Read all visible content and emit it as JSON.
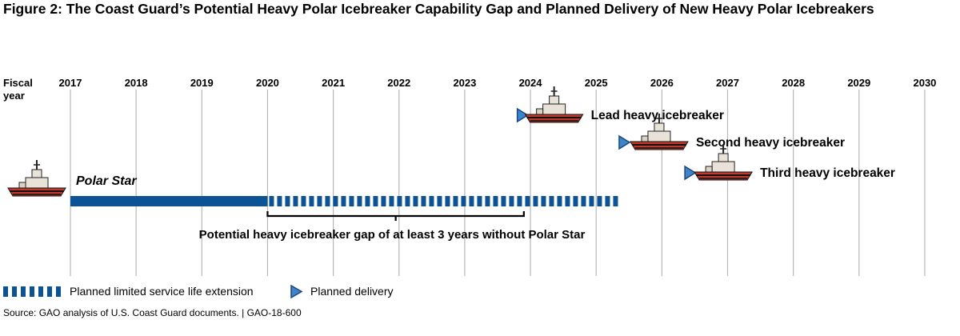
{
  "figure": {
    "title": "Figure 2: The Coast Guard’s Potential Heavy Polar Icebreaker Capability Gap and Planned Delivery of New Heavy Polar Icebreakers",
    "source": "Source: GAO analysis of U.S. Coast Guard documents.  |  GAO-18-600"
  },
  "colors": {
    "bar": "#0b5394",
    "marker": "#3d85c6",
    "grid": "#b7b7b7",
    "text": "#000000"
  },
  "icons": {
    "ship": "ship-icon",
    "delivery": "triangle-marker-icon"
  },
  "chart_data": {
    "type": "timeline",
    "axis_label": "Fiscal year",
    "years": [
      2017,
      2018,
      2019,
      2020,
      2021,
      2022,
      2023,
      2024,
      2025,
      2026,
      2027,
      2028,
      2029,
      2030
    ],
    "polar_star": {
      "label": "Polar Star",
      "service_start": 2017.0,
      "service_end": 2020.0,
      "extension_end": 2025.4
    },
    "gap": {
      "start": 2020.0,
      "end": 2023.9,
      "label": "Potential heavy icebreaker gap of at least 3 years without Polar Star"
    },
    "deliveries": [
      {
        "name": "Lead heavy icebreaker",
        "year": 2023.8
      },
      {
        "name": "Second heavy icebreaker",
        "year": 2025.35
      },
      {
        "name": "Third heavy icebreaker",
        "year": 2026.35
      }
    ],
    "legend": [
      {
        "key": "extension",
        "label": "Planned limited service life extension"
      },
      {
        "key": "delivery",
        "label": "Planned delivery"
      }
    ]
  }
}
